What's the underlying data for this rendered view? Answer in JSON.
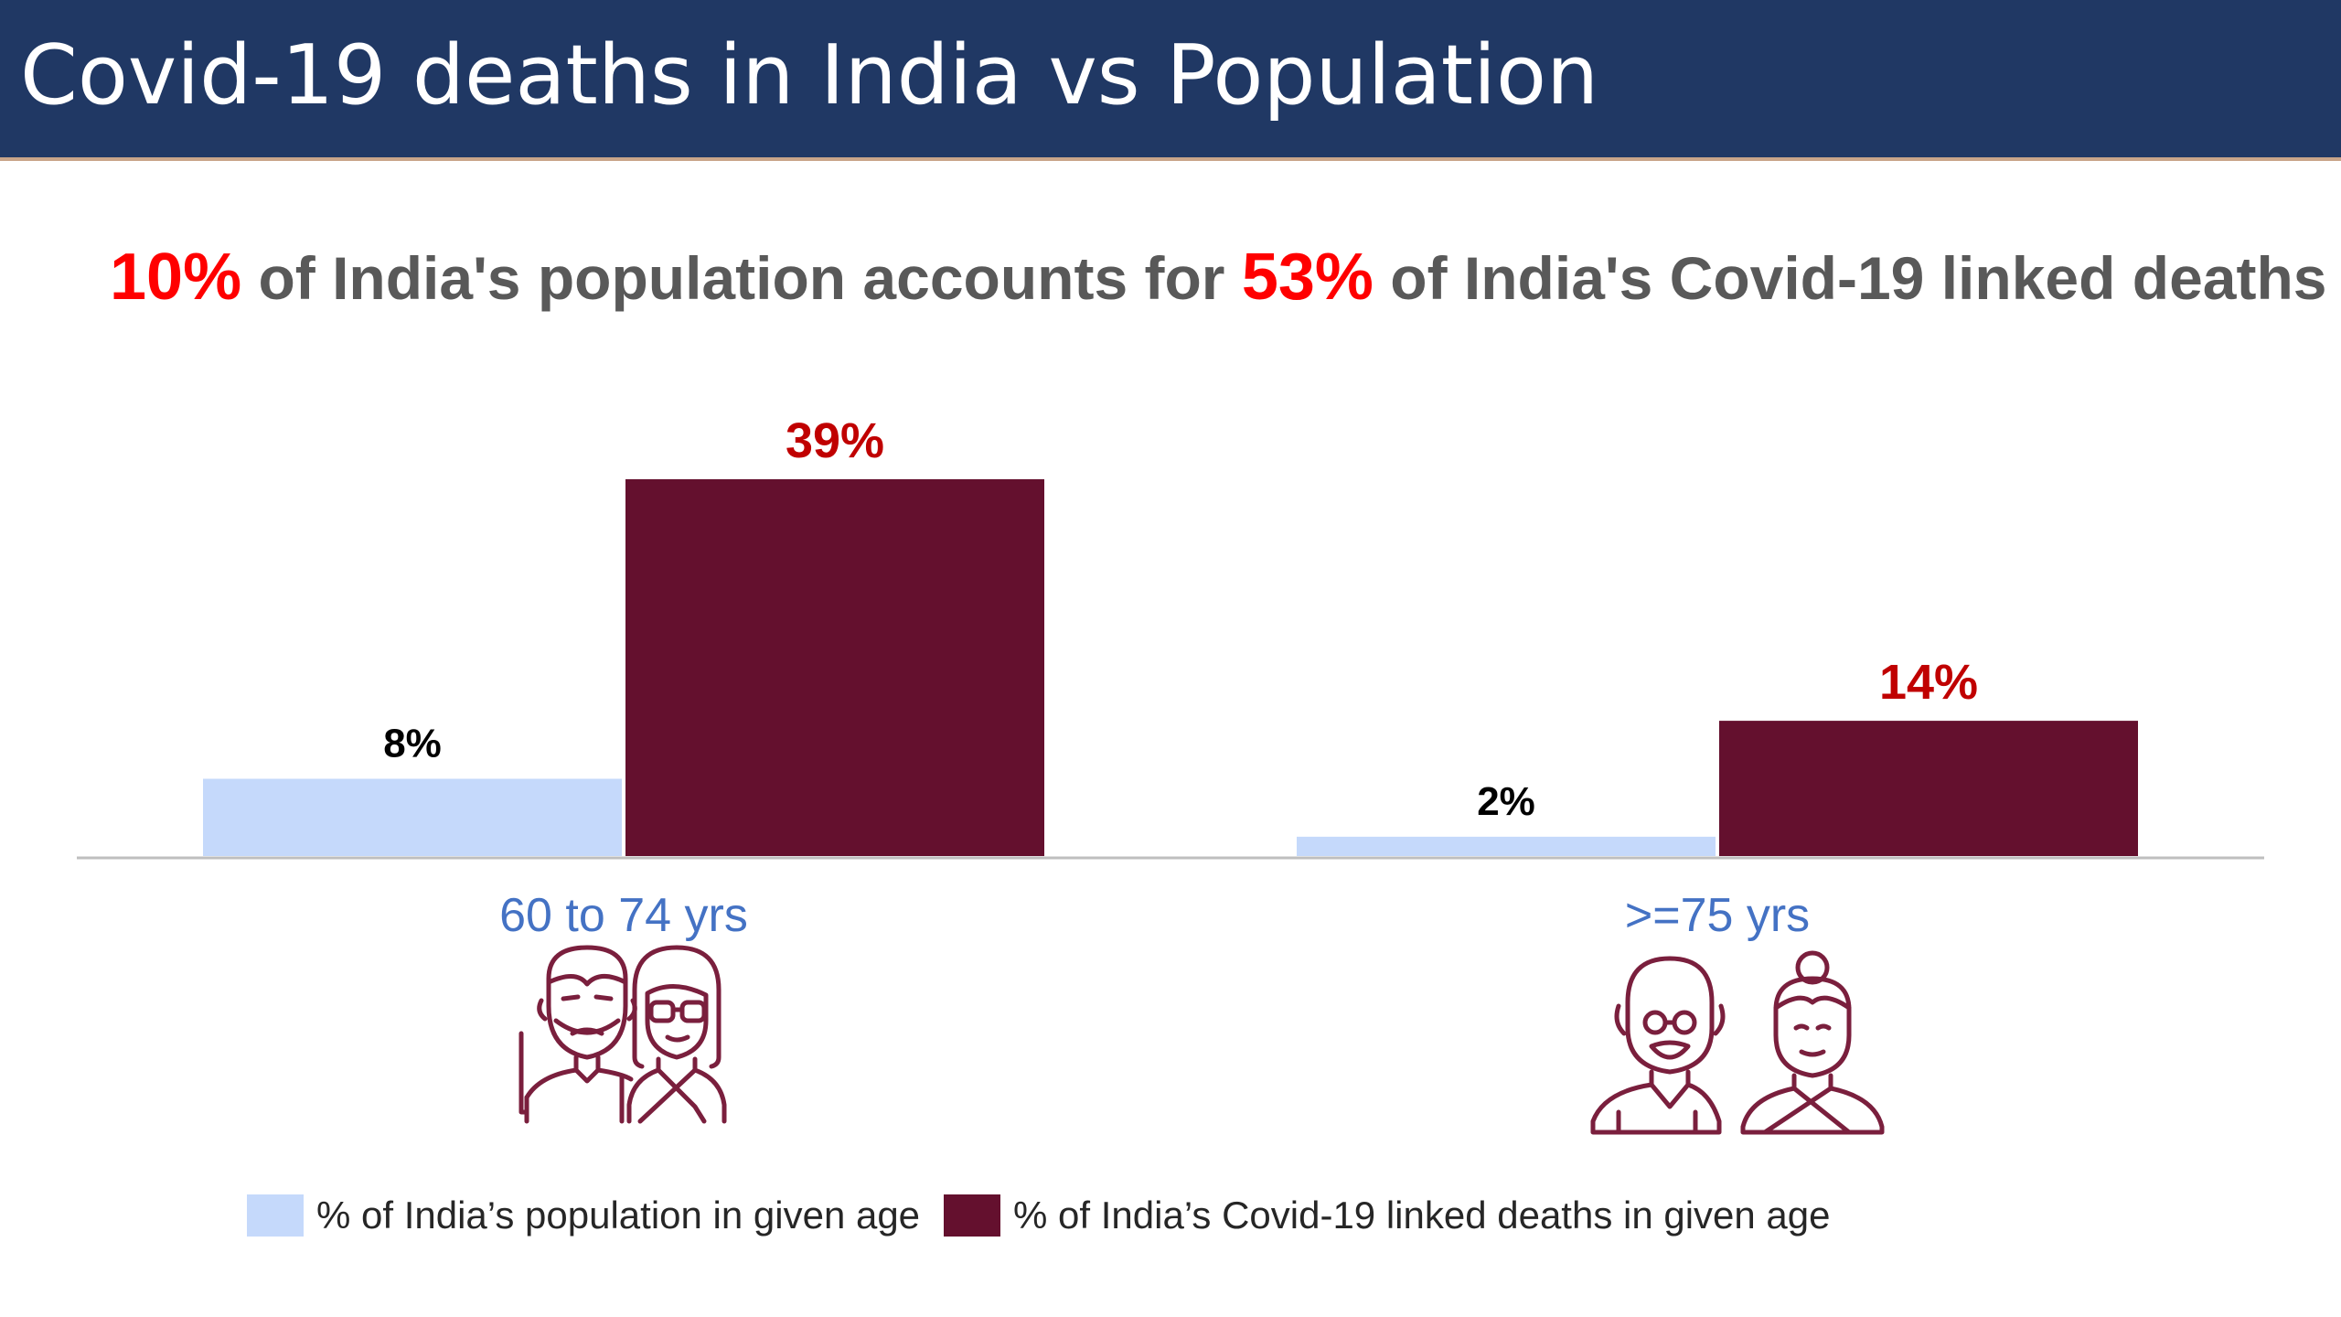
{
  "title": "Covid-19 deaths in India vs Population",
  "headline": {
    "pct_a": "10%",
    "text_a": " of India's population accounts for ",
    "pct_b": "53%",
    "text_b": " of India's Covid-19 linked deaths"
  },
  "colors": {
    "title_bg": "#203864",
    "population": "#c5d9fb",
    "deaths": "#64102e",
    "highlight": "#ff0000",
    "death_label": "#c00000",
    "category": "#4472c4",
    "icon": "#7a1f3d"
  },
  "chart_data": {
    "type": "bar",
    "categories": [
      "60 to 74 yrs",
      ">=75 yrs"
    ],
    "series": [
      {
        "name": "% of India’s population in given age",
        "values": [
          8,
          2
        ],
        "labels": [
          "8%",
          "2%"
        ]
      },
      {
        "name": "% of India’s Covid-19 linked deaths in given age",
        "values": [
          39,
          14
        ],
        "labels": [
          "39%",
          "14%"
        ]
      }
    ],
    "ylim": [
      0,
      39
    ],
    "grid": false,
    "legend": "bottom"
  },
  "icons": [
    "senior-couple-icon",
    "elderly-couple-icon"
  ]
}
